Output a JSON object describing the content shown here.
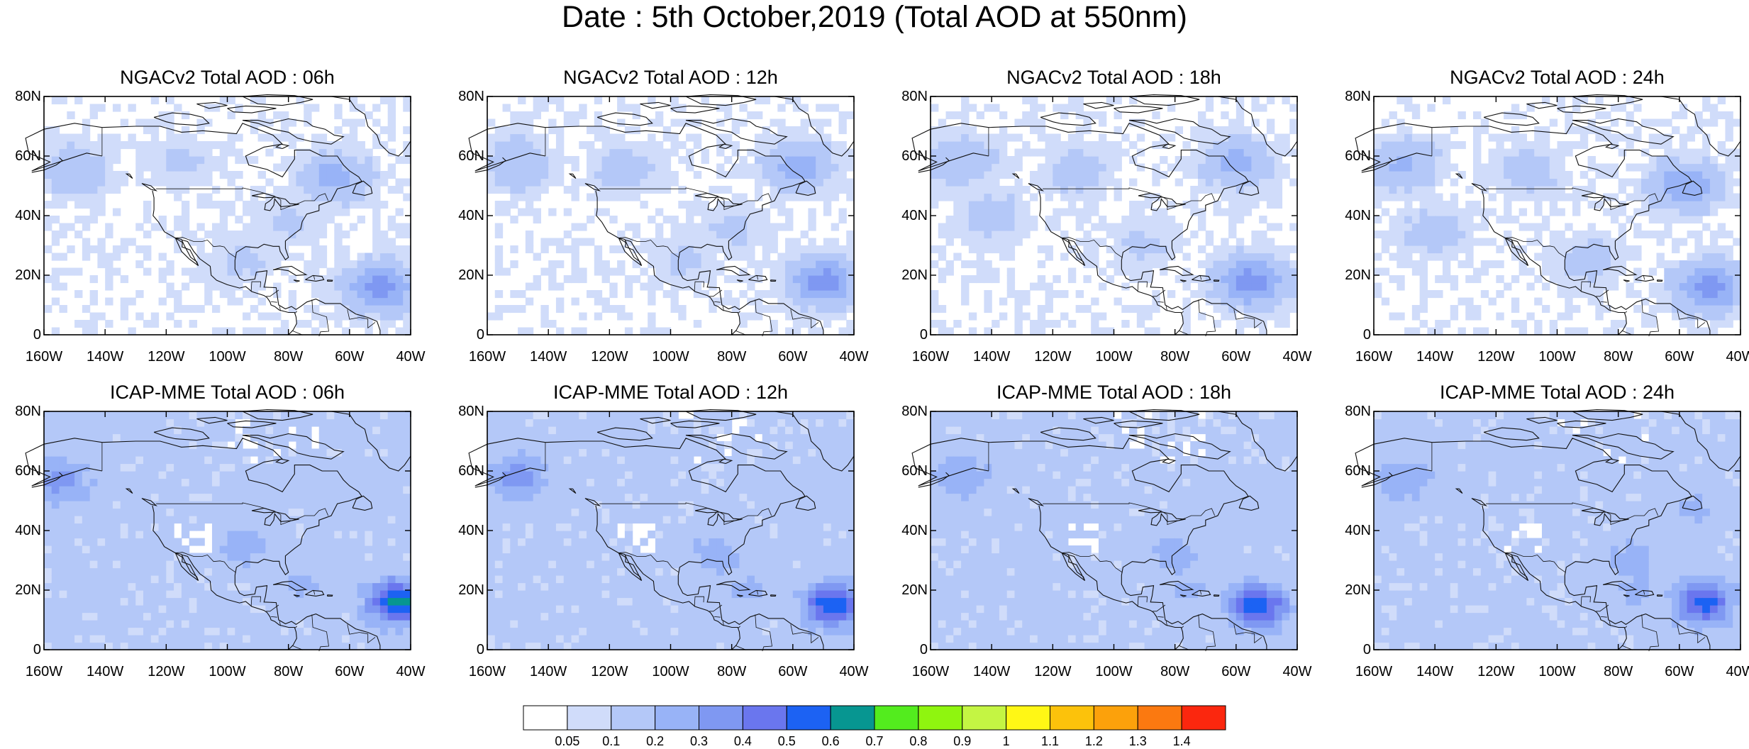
{
  "figure": {
    "title": "Date : 5th October,2019 (Total AOD at 550nm)"
  },
  "chart_data": [
    {
      "type": "heatmap",
      "title": "NGACv2 Total AOD : 06h",
      "model": "NGACv2",
      "forecast_hour": "06h",
      "x_ticks": [
        "160W",
        "140W",
        "120W",
        "100W",
        "80W",
        "60W",
        "40W"
      ],
      "y_ticks": [
        "0",
        "20N",
        "40N",
        "60N",
        "80N"
      ],
      "xlim": [
        -160,
        -40
      ],
      "ylim": [
        0,
        80
      ],
      "features": [
        {
          "lon": -50,
          "lat": 16,
          "aod": 0.35
        },
        {
          "lon": -65,
          "lat": 53,
          "aod": 0.25
        },
        {
          "lon": -150,
          "lat": 55,
          "aod": 0.2
        },
        {
          "lon": -115,
          "lat": 58,
          "aod": 0.12
        },
        {
          "lon": -95,
          "lat": 25,
          "aod": 0.12
        },
        {
          "lon": -80,
          "lat": 38,
          "aod": 0.12
        }
      ]
    },
    {
      "type": "heatmap",
      "title": "NGACv2 Total AOD : 12h",
      "model": "NGACv2",
      "forecast_hour": "12h",
      "x_ticks": [
        "160W",
        "140W",
        "120W",
        "100W",
        "80W",
        "60W",
        "40W"
      ],
      "y_ticks": [
        "0",
        "20N",
        "40N",
        "60N",
        "80N"
      ],
      "xlim": [
        -160,
        -40
      ],
      "ylim": [
        0,
        80
      ],
      "features": [
        {
          "lon": -50,
          "lat": 18,
          "aod": 0.35
        },
        {
          "lon": -58,
          "lat": 57,
          "aod": 0.25
        },
        {
          "lon": -150,
          "lat": 57,
          "aod": 0.2
        },
        {
          "lon": -115,
          "lat": 56,
          "aod": 0.15
        },
        {
          "lon": -95,
          "lat": 25,
          "aod": 0.12
        },
        {
          "lon": -80,
          "lat": 36,
          "aod": 0.12
        }
      ]
    },
    {
      "type": "heatmap",
      "title": "NGACv2 Total AOD : 18h",
      "model": "NGACv2",
      "forecast_hour": "18h",
      "x_ticks": [
        "160W",
        "140W",
        "120W",
        "100W",
        "80W",
        "60W",
        "40W"
      ],
      "y_ticks": [
        "0",
        "20N",
        "40N",
        "60N",
        "80N"
      ],
      "xlim": [
        -160,
        -40
      ],
      "ylim": [
        0,
        80
      ],
      "features": [
        {
          "lon": -55,
          "lat": 18,
          "aod": 0.35
        },
        {
          "lon": -60,
          "lat": 58,
          "aod": 0.25
        },
        {
          "lon": -150,
          "lat": 58,
          "aod": 0.2
        },
        {
          "lon": -112,
          "lat": 55,
          "aod": 0.15
        },
        {
          "lon": -140,
          "lat": 40,
          "aod": 0.15
        },
        {
          "lon": -90,
          "lat": 30,
          "aod": 0.12
        }
      ]
    },
    {
      "type": "heatmap",
      "title": "NGACv2 Total AOD : 24h",
      "model": "NGACv2",
      "forecast_hour": "24h",
      "x_ticks": [
        "160W",
        "140W",
        "120W",
        "100W",
        "80W",
        "60W",
        "40W"
      ],
      "y_ticks": [
        "0",
        "20N",
        "40N",
        "60N",
        "80N"
      ],
      "xlim": [
        -160,
        -40
      ],
      "ylim": [
        0,
        80
      ],
      "features": [
        {
          "lon": -50,
          "lat": 16,
          "aod": 0.35
        },
        {
          "lon": -58,
          "lat": 50,
          "aod": 0.3
        },
        {
          "lon": -150,
          "lat": 57,
          "aod": 0.22
        },
        {
          "lon": -110,
          "lat": 55,
          "aod": 0.15
        },
        {
          "lon": -140,
          "lat": 35,
          "aod": 0.15
        },
        {
          "lon": -90,
          "lat": 25,
          "aod": 0.15
        }
      ]
    },
    {
      "type": "heatmap",
      "title": "ICAP-MME Total AOD : 06h",
      "model": "ICAP-MME",
      "forecast_hour": "06h",
      "x_ticks": [
        "160W",
        "140W",
        "120W",
        "100W",
        "80W",
        "60W",
        "40W"
      ],
      "y_ticks": [
        "0",
        "20N",
        "40N",
        "60N",
        "80N"
      ],
      "xlim": [
        -160,
        -40
      ],
      "ylim": [
        0,
        80
      ],
      "features": [
        {
          "lon": -44,
          "lat": 16,
          "aod": 0.65
        },
        {
          "lon": -155,
          "lat": 57,
          "aod": 0.35
        },
        {
          "lon": -95,
          "lat": 35,
          "aod": 0.25
        },
        {
          "lon": -75,
          "lat": 22,
          "aod": 0.22
        },
        {
          "lon": -60,
          "lat": 50,
          "aod": 0.2
        }
      ]
    },
    {
      "type": "heatmap",
      "title": "ICAP-MME Total AOD : 12h",
      "model": "ICAP-MME",
      "forecast_hour": "12h",
      "x_ticks": [
        "160W",
        "140W",
        "120W",
        "100W",
        "80W",
        "60W",
        "40W"
      ],
      "y_ticks": [
        "0",
        "20N",
        "40N",
        "60N",
        "80N"
      ],
      "xlim": [
        -160,
        -40
      ],
      "ylim": [
        0,
        80
      ],
      "features": [
        {
          "lon": -47,
          "lat": 15,
          "aod": 0.6
        },
        {
          "lon": -150,
          "lat": 58,
          "aod": 0.35
        },
        {
          "lon": -85,
          "lat": 32,
          "aod": 0.25
        },
        {
          "lon": -75,
          "lat": 20,
          "aod": 0.22
        },
        {
          "lon": -55,
          "lat": 52,
          "aod": 0.2
        }
      ]
    },
    {
      "type": "heatmap",
      "title": "ICAP-MME Total AOD : 18h",
      "model": "ICAP-MME",
      "forecast_hour": "18h",
      "x_ticks": [
        "160W",
        "140W",
        "120W",
        "100W",
        "80W",
        "60W",
        "40W"
      ],
      "y_ticks": [
        "0",
        "20N",
        "40N",
        "60N",
        "80N"
      ],
      "xlim": [
        -160,
        -40
      ],
      "ylim": [
        0,
        80
      ],
      "features": [
        {
          "lon": -53,
          "lat": 15,
          "aod": 0.6
        },
        {
          "lon": -150,
          "lat": 58,
          "aod": 0.3
        },
        {
          "lon": -80,
          "lat": 32,
          "aod": 0.25
        },
        {
          "lon": -75,
          "lat": 20,
          "aod": 0.22
        },
        {
          "lon": -55,
          "lat": 50,
          "aod": 0.2
        }
      ]
    },
    {
      "type": "heatmap",
      "title": "ICAP-MME Total AOD : 24h",
      "model": "ICAP-MME",
      "forecast_hour": "24h",
      "x_ticks": [
        "160W",
        "140W",
        "120W",
        "100W",
        "80W",
        "60W",
        "40W"
      ],
      "y_ticks": [
        "0",
        "20N",
        "40N",
        "60N",
        "80N"
      ],
      "xlim": [
        -160,
        -40
      ],
      "ylim": [
        0,
        80
      ],
      "features": [
        {
          "lon": -52,
          "lat": 16,
          "aod": 0.55
        },
        {
          "lon": -150,
          "lat": 57,
          "aod": 0.28
        },
        {
          "lon": -75,
          "lat": 30,
          "aod": 0.25
        },
        {
          "lon": -75,
          "lat": 20,
          "aod": 0.22
        },
        {
          "lon": -55,
          "lat": 48,
          "aod": 0.22
        }
      ]
    }
  ],
  "colorbar": {
    "labels": [
      "0.05",
      "0.1",
      "0.2",
      "0.3",
      "0.4",
      "0.5",
      "0.6",
      "0.7",
      "0.8",
      "0.9",
      "1",
      "1.1",
      "1.2",
      "1.3",
      "1.4"
    ],
    "colors": [
      "#ffffff",
      "#d0dcfa",
      "#b4c8f8",
      "#98b3f7",
      "#7f98f2",
      "#6a76ee",
      "#1c62f3",
      "#079691",
      "#53ec1e",
      "#8ff50f",
      "#c4f543",
      "#fff715",
      "#fcc20b",
      "#fca10b",
      "#fb7910",
      "#fb270e"
    ]
  }
}
